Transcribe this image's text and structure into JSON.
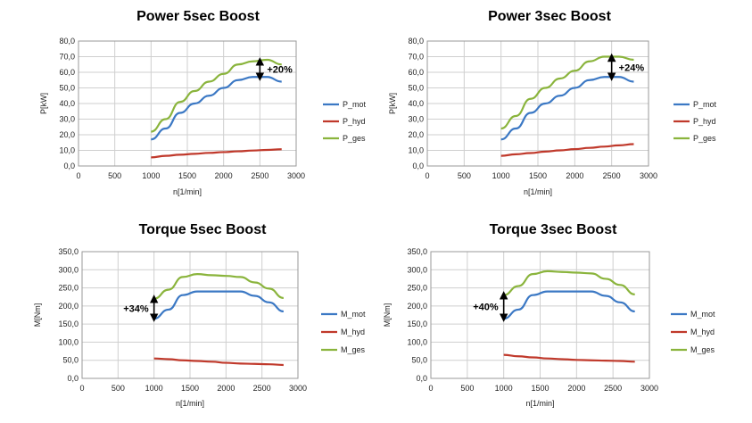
{
  "chart_data": [
    {
      "type": "line",
      "title": "Power 5sec Boost",
      "xlabel": "n[1/min]",
      "ylabel": "P[kW]",
      "xlim": [
        0,
        3000
      ],
      "ylim": [
        0,
        80
      ],
      "x_ticks": [
        "0",
        "500",
        "1000",
        "1500",
        "2000",
        "2500",
        "3000"
      ],
      "y_ticks": [
        "0,0",
        "10,0",
        "20,0",
        "30,0",
        "40,0",
        "50,0",
        "60,0",
        "70,0",
        "80,0"
      ],
      "grid": true,
      "legend_position": "right",
      "series": [
        {
          "name": "P_mot",
          "color": "#3b78c4",
          "x": [
            1000,
            1200,
            1400,
            1600,
            1800,
            2000,
            2200,
            2400,
            2600,
            2800
          ],
          "y": [
            17,
            24,
            34,
            40,
            45,
            50,
            55,
            57,
            57,
            54
          ]
        },
        {
          "name": "P_hyd",
          "color": "#c0392b",
          "x": [
            1000,
            1200,
            1400,
            1600,
            1800,
            2000,
            2200,
            2400,
            2600,
            2800
          ],
          "y": [
            5.5,
            6.5,
            7.2,
            7.8,
            8.4,
            8.9,
            9.4,
            9.9,
            10.3,
            10.7
          ]
        },
        {
          "name": "P_ges",
          "color": "#8ab43c",
          "x": [
            1000,
            1200,
            1400,
            1600,
            1800,
            2000,
            2200,
            2400,
            2600,
            2800
          ],
          "y": [
            22,
            30,
            41,
            48,
            54,
            59,
            65,
            67,
            68,
            65
          ]
        }
      ],
      "annotation": {
        "text": "+20%",
        "x": 2500,
        "y_from": 56.5,
        "y_to": 67.5
      }
    },
    {
      "type": "line",
      "title": "Power 3sec Boost",
      "xlabel": "n[1/min]",
      "ylabel": "P[kW]",
      "xlim": [
        0,
        3000
      ],
      "ylim": [
        0,
        80
      ],
      "x_ticks": [
        "0",
        "500",
        "1000",
        "1500",
        "2000",
        "2500",
        "3000"
      ],
      "y_ticks": [
        "0,0",
        "10,0",
        "20,0",
        "30,0",
        "40,0",
        "50,0",
        "60,0",
        "70,0",
        "80,0"
      ],
      "grid": true,
      "legend_position": "right",
      "series": [
        {
          "name": "P_mot",
          "color": "#3b78c4",
          "x": [
            1000,
            1200,
            1400,
            1600,
            1800,
            2000,
            2200,
            2400,
            2600,
            2800
          ],
          "y": [
            17,
            24,
            34,
            40,
            45,
            50,
            55,
            57,
            57,
            54
          ]
        },
        {
          "name": "P_hyd",
          "color": "#c0392b",
          "x": [
            1000,
            1200,
            1400,
            1600,
            1800,
            2000,
            2200,
            2400,
            2600,
            2800
          ],
          "y": [
            6.5,
            7.5,
            8.3,
            9.2,
            10,
            10.8,
            11.6,
            12.4,
            13.2,
            14
          ]
        },
        {
          "name": "P_ges",
          "color": "#8ab43c",
          "x": [
            1000,
            1200,
            1400,
            1600,
            1800,
            2000,
            2200,
            2400,
            2600,
            2800
          ],
          "y": [
            24,
            32,
            43,
            50,
            56,
            61,
            67,
            70,
            70,
            68
          ]
        }
      ],
      "annotation": {
        "text": "+24%",
        "x": 2500,
        "y_from": 56.5,
        "y_to": 70
      }
    },
    {
      "type": "line",
      "title": "Torque 5sec Boost",
      "xlabel": "n[1/min]",
      "ylabel": "M[Nm]",
      "xlim": [
        0,
        3000
      ],
      "ylim": [
        0,
        350
      ],
      "x_ticks": [
        "0",
        "500",
        "1000",
        "1500",
        "2000",
        "2500",
        "3000"
      ],
      "y_ticks": [
        "0,0",
        "50,0",
        "100,0",
        "150,0",
        "200,0",
        "250,0",
        "300,0",
        "350,0"
      ],
      "grid": true,
      "legend_position": "right",
      "series": [
        {
          "name": "M_mot",
          "color": "#3b78c4",
          "x": [
            1000,
            1200,
            1400,
            1600,
            1800,
            2000,
            2200,
            2400,
            2600,
            2800
          ],
          "y": [
            165,
            190,
            230,
            240,
            240,
            240,
            240,
            228,
            210,
            185
          ]
        },
        {
          "name": "M_hyd",
          "color": "#c0392b",
          "x": [
            1000,
            1200,
            1400,
            1600,
            1800,
            2000,
            2200,
            2400,
            2600,
            2800
          ],
          "y": [
            55,
            53,
            50,
            48,
            46,
            43,
            41,
            40,
            39,
            37
          ]
        },
        {
          "name": "M_ges",
          "color": "#8ab43c",
          "x": [
            1000,
            1200,
            1400,
            1600,
            1800,
            2000,
            2200,
            2400,
            2600,
            2800
          ],
          "y": [
            220,
            245,
            280,
            288,
            285,
            283,
            280,
            265,
            248,
            222
          ]
        }
      ],
      "annotation": {
        "text": "+34%",
        "x": 1000,
        "y_from": 165,
        "y_to": 222
      }
    },
    {
      "type": "line",
      "title": "Torque 3sec Boost",
      "xlabel": "n[1/min]",
      "ylabel": "M[Nm]",
      "xlim": [
        0,
        3000
      ],
      "ylim": [
        0,
        350
      ],
      "x_ticks": [
        "0",
        "500",
        "1000",
        "1500",
        "2000",
        "2500",
        "3000"
      ],
      "y_ticks": [
        "0,0",
        "50,0",
        "100,0",
        "150,0",
        "200,0",
        "250,0",
        "300,0",
        "350,0"
      ],
      "grid": true,
      "legend_position": "right",
      "series": [
        {
          "name": "M_mot",
          "color": "#3b78c4",
          "x": [
            1000,
            1200,
            1400,
            1600,
            1800,
            2000,
            2200,
            2400,
            2600,
            2800
          ],
          "y": [
            165,
            190,
            230,
            240,
            240,
            240,
            240,
            228,
            210,
            185
          ]
        },
        {
          "name": "M_hyd",
          "color": "#c0392b",
          "x": [
            1000,
            1200,
            1400,
            1600,
            1800,
            2000,
            2200,
            2400,
            2600,
            2800
          ],
          "y": [
            65,
            61,
            58,
            55,
            53,
            51,
            50,
            49,
            48,
            46
          ]
        },
        {
          "name": "M_ges",
          "color": "#8ab43c",
          "x": [
            1000,
            1200,
            1400,
            1600,
            1800,
            2000,
            2200,
            2400,
            2600,
            2800
          ],
          "y": [
            230,
            255,
            288,
            296,
            294,
            292,
            290,
            275,
            258,
            232
          ]
        }
      ],
      "annotation": {
        "text": "+40%",
        "x": 1000,
        "y_from": 165,
        "y_to": 232
      }
    }
  ]
}
